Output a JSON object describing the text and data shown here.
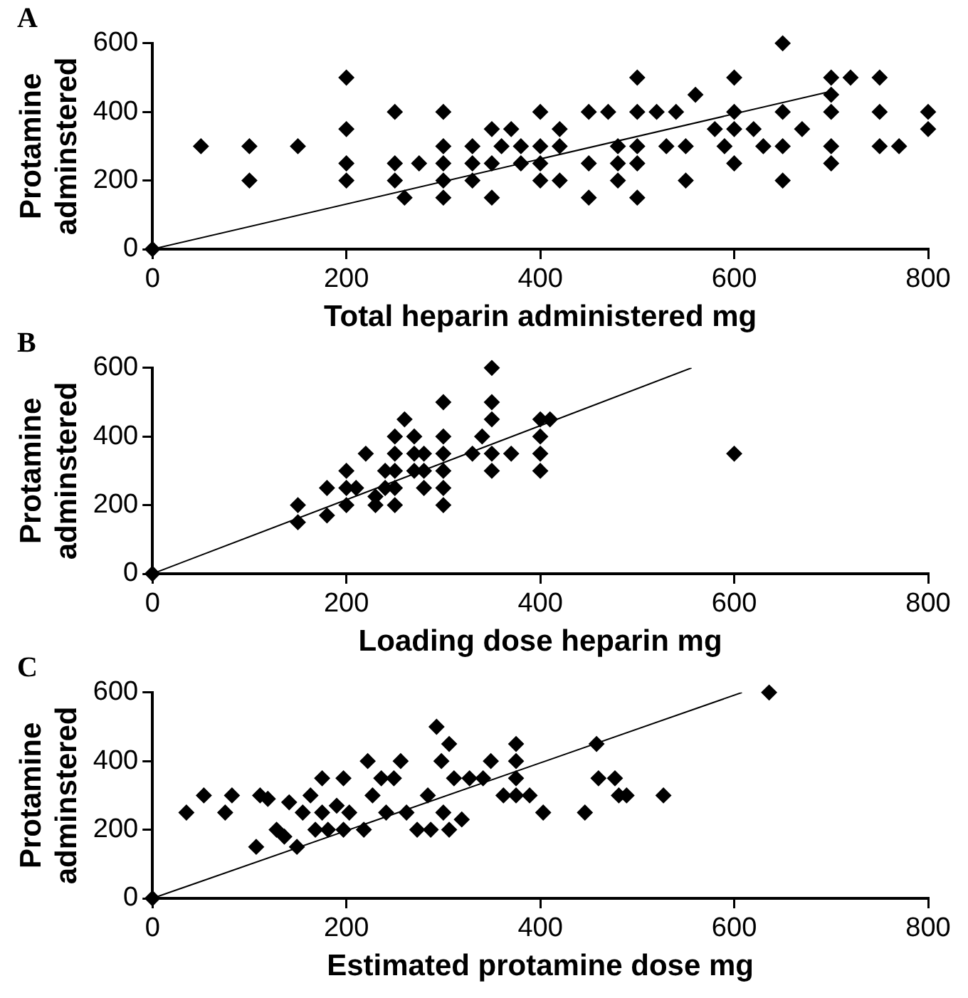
{
  "chart_data": [
    {
      "type": "scatter",
      "annotations": [
        "A"
      ],
      "xlabel": "Total heparin administered mg",
      "ylabel": "Protamine\nadminstered",
      "xlim": [
        0,
        800
      ],
      "xticks": [
        0,
        200,
        400,
        600,
        800
      ],
      "ylim": [
        0,
        600
      ],
      "yticks": [
        0,
        200,
        400,
        600
      ],
      "grid": false,
      "marker": "diamond",
      "series": [
        {
          "type": "scatter",
          "color": "#000000",
          "x": [
            0,
            50,
            100,
            100,
            150,
            200,
            200,
            200,
            200,
            250,
            250,
            250,
            260,
            275,
            300,
            300,
            300,
            300,
            300,
            330,
            330,
            330,
            350,
            350,
            350,
            360,
            370,
            380,
            380,
            400,
            400,
            400,
            400,
            420,
            420,
            420,
            450,
            450,
            450,
            470,
            480,
            480,
            480,
            500,
            500,
            500,
            500,
            500,
            520,
            530,
            540,
            550,
            550,
            560,
            580,
            590,
            600,
            600,
            600,
            600,
            620,
            630,
            650,
            650,
            650,
            650,
            670,
            700,
            700,
            700,
            700,
            700,
            720,
            750,
            750,
            750,
            770,
            800,
            800
          ],
          "values": [
            0,
            300,
            300,
            200,
            300,
            500,
            350,
            250,
            200,
            400,
            250,
            200,
            150,
            250,
            400,
            300,
            250,
            150,
            200,
            300,
            250,
            200,
            350,
            250,
            150,
            300,
            350,
            300,
            250,
            400,
            300,
            250,
            200,
            350,
            300,
            200,
            400,
            250,
            150,
            400,
            300,
            250,
            200,
            500,
            400,
            300,
            250,
            150,
            400,
            300,
            400,
            300,
            200,
            450,
            350,
            300,
            500,
            400,
            350,
            250,
            350,
            300,
            600,
            400,
            300,
            200,
            350,
            500,
            450,
            400,
            300,
            250,
            500,
            500,
            400,
            300,
            300,
            400,
            350
          ]
        },
        {
          "type": "line",
          "color": "#000000",
          "marker": "none",
          "x": [
            0,
            700
          ],
          "values": [
            0,
            460
          ]
        }
      ]
    },
    {
      "type": "scatter",
      "annotations": [
        "B"
      ],
      "xlabel": "Loading dose heparin mg",
      "ylabel": "Protamine\nadminstered",
      "xlim": [
        0,
        800
      ],
      "xticks": [
        0,
        200,
        400,
        600,
        800
      ],
      "ylim": [
        0,
        600
      ],
      "yticks": [
        0,
        200,
        400,
        600
      ],
      "grid": false,
      "marker": "diamond",
      "series": [
        {
          "type": "scatter",
          "color": "#000000",
          "x": [
            0,
            150,
            150,
            180,
            180,
            200,
            200,
            200,
            210,
            220,
            230,
            230,
            240,
            240,
            250,
            250,
            250,
            250,
            250,
            260,
            270,
            270,
            270,
            280,
            280,
            280,
            300,
            300,
            300,
            300,
            300,
            300,
            330,
            340,
            350,
            350,
            350,
            350,
            350,
            370,
            400,
            400,
            400,
            400,
            410,
            600
          ],
          "values": [
            0,
            200,
            150,
            250,
            170,
            300,
            250,
            200,
            250,
            350,
            225,
            200,
            250,
            300,
            350,
            400,
            250,
            200,
            300,
            450,
            400,
            350,
            300,
            300,
            350,
            250,
            500,
            400,
            350,
            300,
            250,
            200,
            350,
            400,
            600,
            500,
            450,
            350,
            300,
            350,
            450,
            400,
            350,
            300,
            450,
            350
          ]
        },
        {
          "type": "line",
          "color": "#000000",
          "marker": "none",
          "x": [
            0,
            556
          ],
          "values": [
            0,
            600
          ]
        }
      ]
    },
    {
      "type": "scatter",
      "annotations": [
        "C"
      ],
      "xlabel": "Estimated protamine dose mg",
      "ylabel": "Protamine\nadminstered",
      "xlim": [
        0,
        800
      ],
      "xticks": [
        0,
        200,
        400,
        600,
        800
      ],
      "ylim": [
        0,
        600
      ],
      "yticks": [
        0,
        200,
        400,
        600
      ],
      "grid": false,
      "marker": "diamond",
      "series": [
        {
          "type": "scatter",
          "color": "#000000",
          "x": [
            0,
            35,
            53,
            75,
            82,
            107,
            111,
            119,
            128,
            136,
            141,
            149,
            155,
            163,
            168,
            175,
            175,
            181,
            190,
            197,
            197,
            203,
            218,
            222,
            227,
            236,
            241,
            249,
            256,
            262,
            273,
            284,
            287,
            293,
            298,
            300,
            306,
            306,
            311,
            319,
            327,
            341,
            349,
            362,
            375,
            375,
            375,
            375,
            389,
            403,
            446,
            458,
            460,
            477,
            481,
            489,
            527,
            636
          ],
          "values": [
            0,
            250,
            300,
            250,
            300,
            150,
            300,
            290,
            200,
            180,
            280,
            150,
            250,
            300,
            200,
            350,
            250,
            200,
            270,
            350,
            200,
            250,
            200,
            400,
            300,
            350,
            250,
            350,
            400,
            250,
            200,
            300,
            200,
            500,
            400,
            250,
            450,
            200,
            350,
            230,
            350,
            350,
            400,
            300,
            450,
            400,
            350,
            300,
            300,
            250,
            250,
            450,
            350,
            350,
            300,
            300,
            300,
            600
          ]
        },
        {
          "type": "line",
          "color": "#000000",
          "marker": "none",
          "x": [
            0,
            608
          ],
          "values": [
            0,
            600
          ]
        }
      ]
    }
  ]
}
